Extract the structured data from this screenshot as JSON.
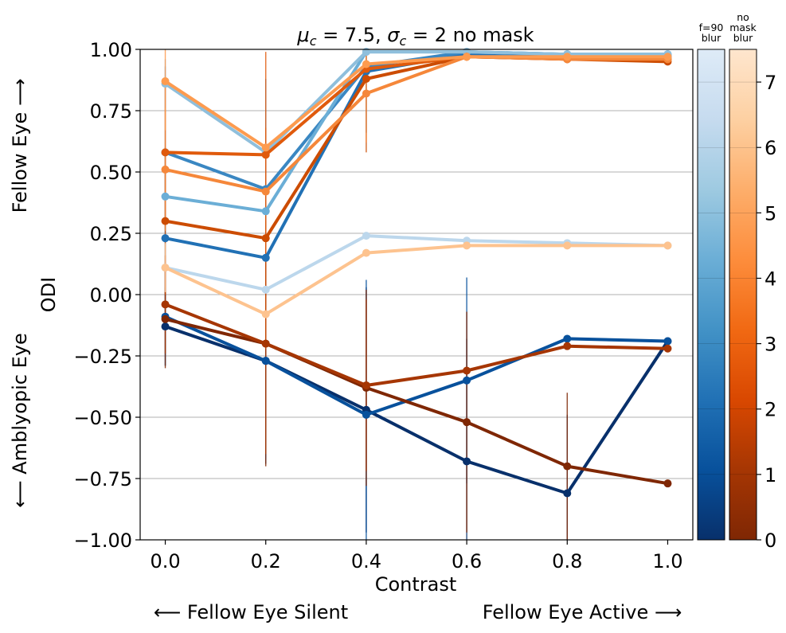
{
  "chart_data": {
    "type": "line",
    "title": "$\\mu_c = 7.5$, $\\sigma_c = 2$ no mask",
    "title_parts": {
      "mu": "μ",
      "mu_sub": "c",
      "mu_rest": " = 7.5, ",
      "sigma": "σ",
      "sigma_sub": "c",
      "sigma_rest": " = 2 no mask"
    },
    "xlabel": "Contrast",
    "ylabel": "ODI",
    "x_arrow_left": "⟵  Fellow Eye Silent",
    "x_arrow_right": "Fellow Eye Active  ⟶",
    "y_arrow_top": "Fellow Eye  ⟶",
    "y_arrow_bottom": "⟵  Amblyopic Eye",
    "x": [
      0.0,
      0.2,
      0.4,
      0.6,
      0.8,
      1.0
    ],
    "xlim": [
      -0.05,
      1.05
    ],
    "ylim": [
      -1.0,
      1.0
    ],
    "xticks": [
      "0.0",
      "0.2",
      "0.4",
      "0.6",
      "0.8",
      "1.0"
    ],
    "yticks": [
      "1.00",
      "0.75",
      "0.50",
      "0.25",
      "0.00",
      "−0.25",
      "−0.50",
      "−0.75",
      "−1.00"
    ],
    "ytick_values": [
      1.0,
      0.75,
      0.5,
      0.25,
      0.0,
      -0.25,
      -0.5,
      -0.75,
      -1.0
    ],
    "grid": "horizontal",
    "colorbars": [
      {
        "label": "f=90\nblur",
        "label_lines": [
          "f=90",
          "blur"
        ],
        "colormap": "Blues",
        "colors": [
          "#08306b",
          "#08519c",
          "#2171b5",
          "#4292c6",
          "#6baed6",
          "#9ecae1",
          "#c6dbef",
          "#deebf7"
        ],
        "ticks": []
      },
      {
        "label": "no\nmask\nblur",
        "label_lines": [
          "no",
          "mask",
          "blur"
        ],
        "colormap": "Oranges",
        "colors": [
          "#7f2704",
          "#a63603",
          "#d94801",
          "#f16913",
          "#fd8d3c",
          "#fdae6b",
          "#fdd0a2",
          "#fee6ce"
        ],
        "ticks": [
          "0",
          "1",
          "2",
          "3",
          "4",
          "5",
          "6",
          "7"
        ],
        "range": [
          0,
          7.5
        ]
      }
    ],
    "series": [
      {
        "group": "f=90 blur",
        "level": 0,
        "color": "#08306b",
        "values": [
          -0.13,
          -0.27,
          -0.47,
          -0.68,
          -0.81,
          -0.19
        ],
        "err": [
          0.16,
          0.42,
          0.5,
          0.5,
          0.32,
          0.0
        ]
      },
      {
        "group": "f=90 blur",
        "level": 1,
        "color": "#08519c",
        "values": [
          -0.09,
          -0.27,
          -0.49,
          -0.35,
          -0.18,
          -0.19
        ],
        "err": [
          0.2,
          0.4,
          0.55,
          0.42,
          0.0,
          0.0
        ]
      },
      {
        "group": "f=90 blur",
        "level": 3,
        "color": "#2171b5",
        "values": [
          0.23,
          0.15,
          0.91,
          0.98,
          0.97,
          0.97
        ],
        "err": [
          0.3,
          0.42,
          0.25,
          0.0,
          0.0,
          0.0
        ]
      },
      {
        "group": "f=90 blur",
        "level": 4,
        "color": "#3a87c2",
        "values": [
          0.58,
          0.43,
          0.93,
          0.99,
          0.98,
          0.98
        ],
        "err": [
          0.35,
          0.45,
          0.0,
          0.0,
          0.0,
          0.0
        ]
      },
      {
        "group": "f=90 blur",
        "level": 5,
        "color": "#6baed6",
        "values": [
          0.4,
          0.34,
          0.99,
          0.99,
          0.98,
          0.98
        ],
        "err": [
          0.2,
          0.0,
          0.0,
          0.0,
          0.0,
          0.0
        ]
      },
      {
        "group": "f=90 blur",
        "level": 6,
        "color": "#8fbfdc",
        "values": [
          0.86,
          0.58,
          0.99,
          0.99,
          0.98,
          0.98
        ],
        "err": [
          0.1,
          0.0,
          0.0,
          0.0,
          0.0,
          0.0
        ]
      },
      {
        "group": "f=90 blur",
        "level": 7,
        "color": "#bcd7ec",
        "values": [
          0.11,
          0.02,
          0.24,
          0.22,
          0.21,
          0.2
        ],
        "err": [
          0.1,
          0.0,
          0.0,
          0.0,
          0.0,
          0.0
        ]
      },
      {
        "group": "no mask blur",
        "level": 0,
        "color": "#7f2704",
        "values": [
          -0.1,
          -0.2,
          -0.38,
          -0.52,
          -0.7,
          -0.77
        ],
        "err": [
          0.2,
          0.5,
          0.4,
          0.45,
          0.3,
          0.0
        ]
      },
      {
        "group": "no mask blur",
        "level": 1,
        "color": "#a63603",
        "values": [
          -0.04,
          -0.2,
          -0.37,
          -0.31,
          -0.21,
          -0.22
        ],
        "err": [
          0.2,
          0.45,
          0.35,
          0.0,
          0.0,
          0.0
        ]
      },
      {
        "group": "no mask blur",
        "level": 3,
        "color": "#cc4c02",
        "values": [
          0.3,
          0.23,
          0.88,
          0.97,
          0.96,
          0.95
        ],
        "err": [
          0.3,
          0.45,
          0.3,
          0.0,
          0.0,
          0.0
        ]
      },
      {
        "group": "no mask blur",
        "level": 4,
        "color": "#e05a0c",
        "values": [
          0.58,
          0.57,
          0.92,
          0.97,
          0.96,
          0.96
        ],
        "err": [
          0.3,
          0.42,
          0.0,
          0.0,
          0.0,
          0.0
        ]
      },
      {
        "group": "no mask blur",
        "level": 5,
        "color": "#f5873a",
        "values": [
          0.51,
          0.42,
          0.82,
          0.97,
          0.96,
          0.96
        ],
        "err": [
          0.25,
          0.0,
          0.2,
          0.0,
          0.0,
          0.0
        ]
      },
      {
        "group": "no mask blur",
        "level": 6,
        "color": "#fd9b4f",
        "values": [
          0.87,
          0.6,
          0.94,
          0.97,
          0.97,
          0.97
        ],
        "err": [
          0.2,
          0.0,
          0.0,
          0.0,
          0.0,
          0.0
        ]
      },
      {
        "group": "no mask blur",
        "level": 7,
        "color": "#fdc38f",
        "values": [
          0.11,
          -0.08,
          0.17,
          0.2,
          0.2,
          0.2
        ],
        "err": [
          0.1,
          0.0,
          0.0,
          0.0,
          0.0,
          0.0
        ]
      }
    ]
  }
}
